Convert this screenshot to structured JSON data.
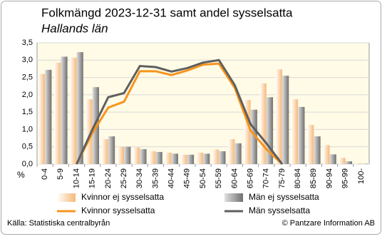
{
  "chart_data": {
    "type": "bar",
    "title": "Folkmängd 2023-12-31 samt andel sysselsatta",
    "subtitle": "Hallands län",
    "y_label": "%",
    "source": "Källa: Statistiska centralbyrån",
    "credit": "© Pantzare Information AB",
    "categories": [
      "0-4",
      "5-9",
      "10-14",
      "15-19",
      "20-24",
      "25-29",
      "30-34",
      "35-39",
      "40-44",
      "45-49",
      "50-54",
      "55-59",
      "60-64",
      "65-69",
      "70-74",
      "75-79",
      "80-84",
      "85-89",
      "90-94",
      "95-99",
      "100-"
    ],
    "series": [
      {
        "name": "Kvinnor ej sysselsatta",
        "type": "bar",
        "color": "#f5b978",
        "values": [
          2.6,
          2.93,
          3.07,
          1.87,
          0.72,
          0.5,
          0.48,
          0.37,
          0.33,
          0.27,
          0.33,
          0.42,
          0.72,
          1.85,
          2.33,
          2.73,
          1.87,
          1.13,
          0.55,
          0.18,
          0.02
        ]
      },
      {
        "name": "Män ej sysselsatta",
        "type": "bar",
        "color": "#8a8a8a",
        "values": [
          2.72,
          3.1,
          3.23,
          2.22,
          0.8,
          0.5,
          0.43,
          0.35,
          0.3,
          0.27,
          0.3,
          0.37,
          0.6,
          1.57,
          1.93,
          2.55,
          1.65,
          0.8,
          0.28,
          0.08,
          0.01
        ]
      },
      {
        "name": "Kvinnor sysselsatta",
        "type": "line",
        "color": "#f7941d",
        "values": [
          null,
          null,
          0,
          0.9,
          1.63,
          1.8,
          2.68,
          2.68,
          2.57,
          2.7,
          2.87,
          2.9,
          2.2,
          0.97,
          0.43,
          0,
          null,
          null,
          null,
          null,
          null
        ]
      },
      {
        "name": "Män sysselsatta",
        "type": "line",
        "color": "#5f5f5f",
        "values": [
          null,
          null,
          0,
          1.0,
          1.93,
          2.05,
          2.83,
          2.8,
          2.67,
          2.77,
          2.93,
          3.0,
          2.28,
          1.15,
          0.6,
          0,
          null,
          null,
          null,
          null,
          null
        ]
      }
    ],
    "ylim": [
      0,
      3.5
    ],
    "yticks": [
      {
        "value": 0,
        "label": "0,0"
      },
      {
        "value": 0.5,
        "label": "0,5"
      },
      {
        "value": 1,
        "label": "1,0"
      },
      {
        "value": 1.5,
        "label": "1,5"
      },
      {
        "value": 2,
        "label": "2,0"
      },
      {
        "value": 2.5,
        "label": "2,5"
      },
      {
        "value": 3,
        "label": "3,0"
      },
      {
        "value": 3.5,
        "label": "3,5"
      }
    ],
    "grid": true,
    "background": "#fffbe6"
  }
}
